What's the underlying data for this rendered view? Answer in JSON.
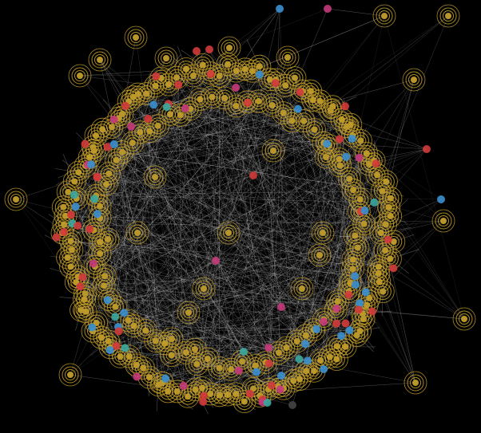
{
  "view": {
    "background": "#000000"
  },
  "legend": {
    "hub_node": {
      "icon": "concentric-ring-icon",
      "ring_color": "#c9a227",
      "core_color": "#b8962a"
    },
    "blue_node": {
      "color": "#3a8fd0"
    },
    "red_node": {
      "color": "#d23a3a"
    },
    "magenta_node": {
      "color": "#c43a7a"
    },
    "teal_node": {
      "color": "#3aa8a0"
    },
    "gray_node": {
      "color": "#444444"
    },
    "edge": {
      "color": "#e6e6e6"
    }
  }
}
